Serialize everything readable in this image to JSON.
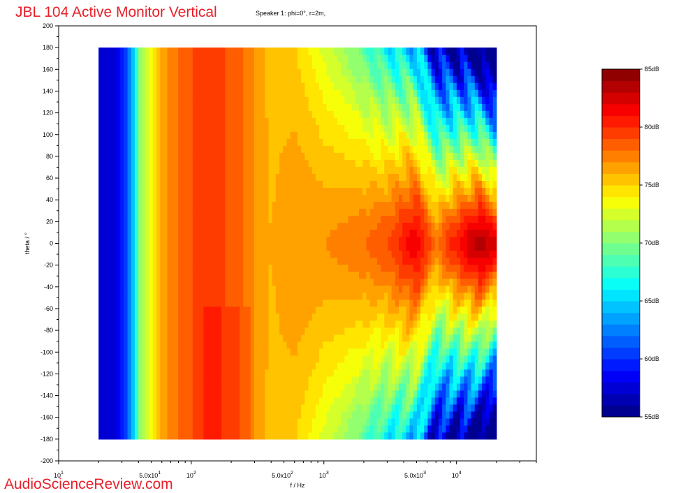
{
  "chart_data": {
    "type": "heatmap",
    "title": "JBL 104 Active Monitor Vertical",
    "subtitle": "Speaker 1: phi=0°, r=2m,",
    "xlabel": "f / Hz",
    "ylabel": "theta / °",
    "x_scale": "log",
    "xlim": [
      10,
      40000
    ],
    "ylim": [
      -200,
      200
    ],
    "data_x_range": [
      20,
      20000
    ],
    "data_y_range": [
      -180,
      180
    ],
    "x_ticks": [
      {
        "value": 10,
        "base": "10",
        "exp": "1"
      },
      {
        "value": 50,
        "base": "5.0x10",
        "exp": "1"
      },
      {
        "value": 100,
        "base": "10",
        "exp": "2"
      },
      {
        "value": 500,
        "base": "5.0x10",
        "exp": "2"
      },
      {
        "value": 1000,
        "base": "10",
        "exp": "3"
      },
      {
        "value": 5000,
        "base": "5.0x10",
        "exp": "3"
      },
      {
        "value": 10000,
        "base": "10",
        "exp": "4"
      }
    ],
    "y_ticks": [
      200,
      180,
      160,
      140,
      120,
      100,
      80,
      60,
      40,
      20,
      0,
      -20,
      -40,
      -60,
      -80,
      -100,
      -120,
      -140,
      -160,
      -180,
      -200
    ],
    "colorbar": {
      "min": 55,
      "max": 85,
      "step": 1,
      "tick_labels": [
        "85dB",
        "80dB",
        "75dB",
        "70dB",
        "65dB",
        "60dB",
        "55dB"
      ],
      "tick_values": [
        85,
        80,
        75,
        70,
        65,
        60,
        55
      ]
    },
    "level_profile_on_axis": [
      {
        "freq": 20,
        "db": 57
      },
      {
        "freq": 28,
        "db": 58
      },
      {
        "freq": 34,
        "db": 62
      },
      {
        "freq": 38,
        "db": 67
      },
      {
        "freq": 42,
        "db": 71
      },
      {
        "freq": 47,
        "db": 73
      },
      {
        "freq": 55,
        "db": 75
      },
      {
        "freq": 65,
        "db": 77
      },
      {
        "freq": 80,
        "db": 78
      },
      {
        "freq": 100,
        "db": 79
      },
      {
        "freq": 150,
        "db": 79.5
      },
      {
        "freq": 220,
        "db": 78.5
      },
      {
        "freq": 300,
        "db": 77
      },
      {
        "freq": 400,
        "db": 76
      },
      {
        "freq": 600,
        "db": 77
      },
      {
        "freq": 1000,
        "db": 77
      },
      {
        "freq": 2000,
        "db": 78
      },
      {
        "freq": 3000,
        "db": 79
      },
      {
        "freq": 5000,
        "db": 82
      },
      {
        "freq": 7000,
        "db": 78
      },
      {
        "freq": 10000,
        "db": 81
      },
      {
        "freq": 15000,
        "db": 84
      },
      {
        "freq": 20000,
        "db": 82
      }
    ]
  },
  "watermark": "AudioScienceReview.com"
}
